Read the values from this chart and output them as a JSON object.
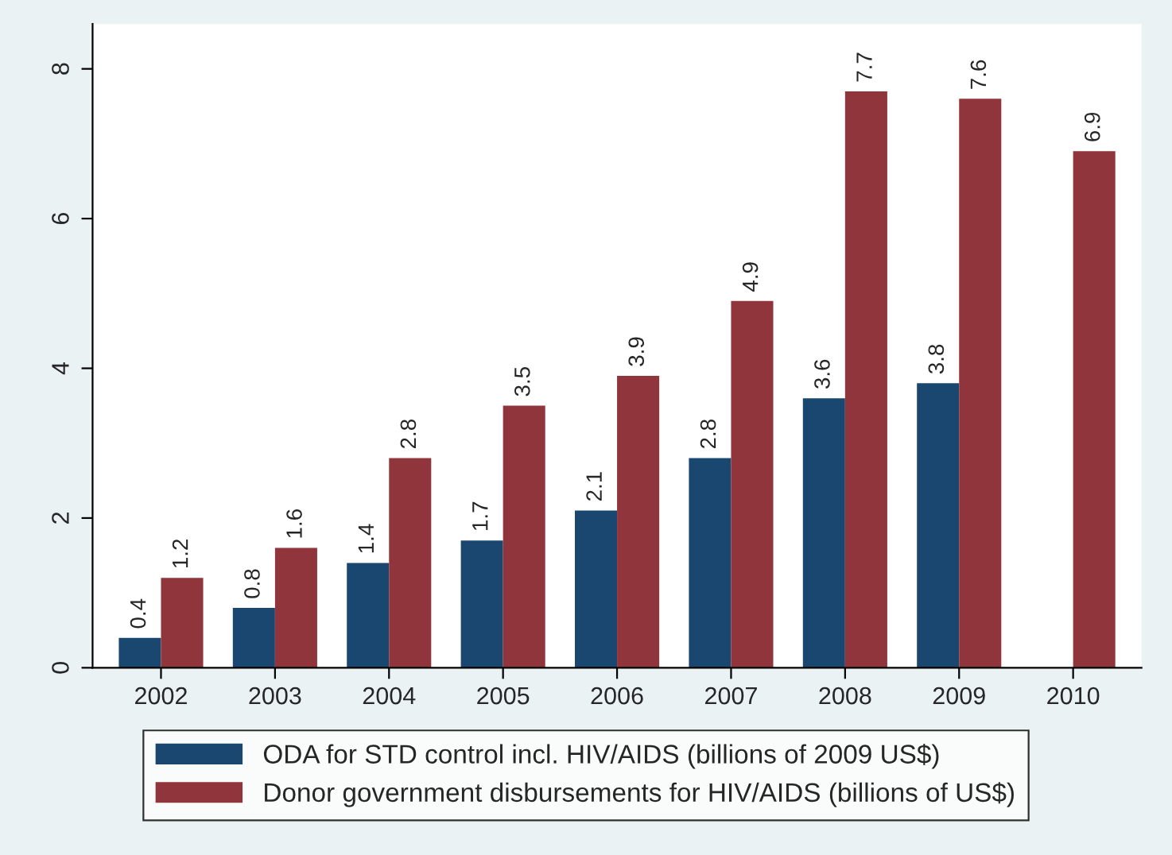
{
  "chart_data": {
    "type": "bar",
    "categories": [
      "2002",
      "2003",
      "2004",
      "2005",
      "2006",
      "2007",
      "2008",
      "2009",
      "2010"
    ],
    "series": [
      {
        "name": "ODA for STD control incl. HIV/AIDS (billions of 2009 US$)",
        "color": "#1a476f",
        "values": [
          0.4,
          0.8,
          1.4,
          1.7,
          2.1,
          2.8,
          3.6,
          3.8,
          null
        ]
      },
      {
        "name": "Donor government disbursements for HIV/AIDS (billions of US$)",
        "color": "#90353b",
        "values": [
          1.2,
          1.6,
          2.8,
          3.5,
          3.9,
          4.9,
          7.7,
          7.6,
          6.9
        ]
      }
    ],
    "ylim": [
      0,
      8.6
    ],
    "yticks": [
      0,
      2,
      4,
      6,
      8
    ],
    "data_labels": true,
    "grid": false,
    "legend": "bottom"
  }
}
